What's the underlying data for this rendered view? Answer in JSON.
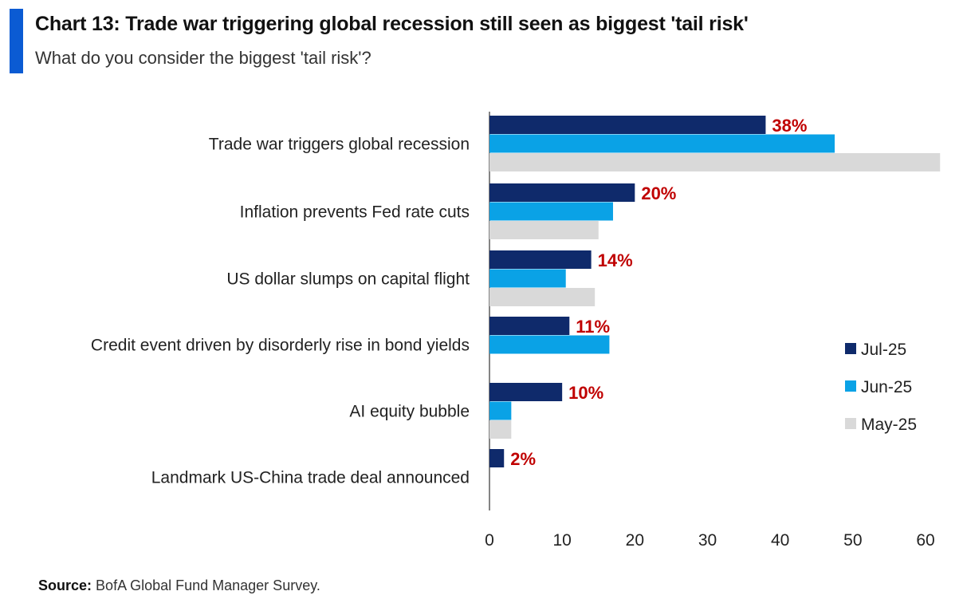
{
  "header": {
    "title": "Chart 13: Trade war triggering global recession still seen as biggest 'tail risk'",
    "subtitle": "What do you consider the biggest 'tail risk'?"
  },
  "footer": {
    "source_label": "Source:",
    "source_text": "BofA Global Fund Manager Survey."
  },
  "colors": {
    "jul25": "#0f2a6b",
    "jun25": "#0aa2e6",
    "may25": "#d9d9d9",
    "value_label": "#c00000",
    "accent": "#0b5bd3"
  },
  "chart_data": {
    "type": "bar",
    "orientation": "horizontal",
    "categories": [
      "Trade war triggers global recession",
      "Inflation prevents Fed rate cuts",
      "US dollar slumps on capital flight",
      "Credit event driven by disorderly rise in bond yields",
      "AI equity bubble",
      "Landmark US-China trade deal announced"
    ],
    "series": [
      {
        "name": "Jul-25",
        "values": [
          38,
          20,
          14,
          11,
          10,
          2
        ]
      },
      {
        "name": "Jun-25",
        "values": [
          47.5,
          17,
          10.5,
          16.5,
          3,
          0
        ]
      },
      {
        "name": "May-25",
        "values": [
          62,
          15,
          14.5,
          0,
          3,
          0
        ]
      }
    ],
    "data_labels": [
      "38%",
      "20%",
      "14%",
      "11%",
      "10%",
      "2%"
    ],
    "xlim": [
      0,
      60
    ],
    "xticks": [
      0,
      10,
      20,
      30,
      40,
      50,
      60
    ],
    "legend_position": "right",
    "grid": false
  }
}
